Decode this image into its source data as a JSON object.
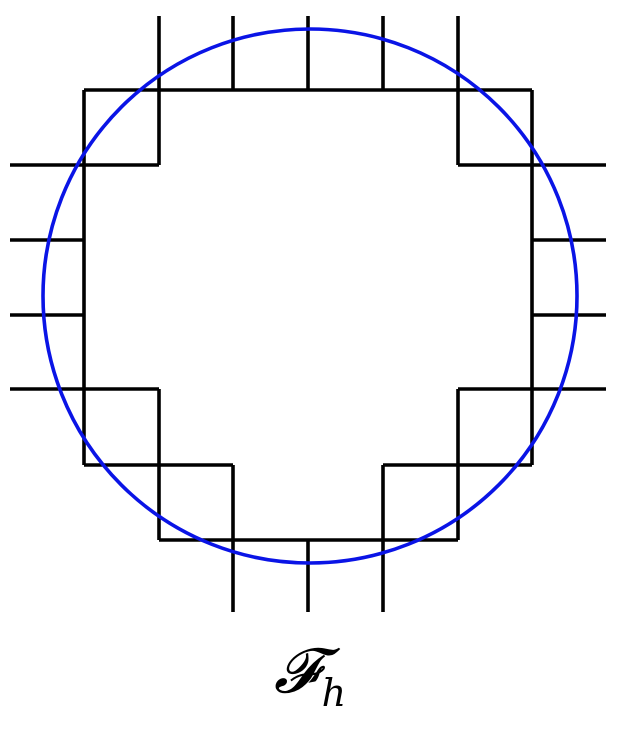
{
  "figure": {
    "label_symbol": "𝓕",
    "label_subscript": "h"
  },
  "colors": {
    "circle": "#0a14e6",
    "grid": "#000000"
  }
}
